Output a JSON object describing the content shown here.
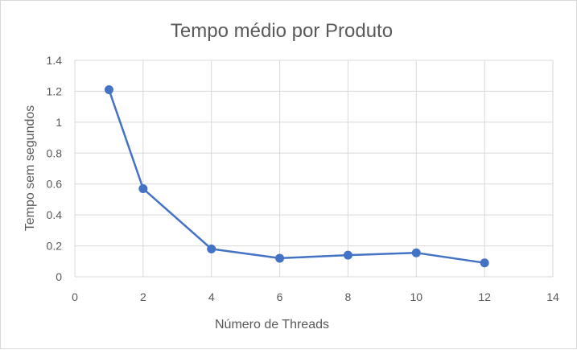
{
  "chart_data": {
    "type": "scatter",
    "title": "Tempo médio por Produto",
    "xlabel": "Número de Threads",
    "ylabel": "Tempo sem segundos",
    "xlim": [
      0,
      14
    ],
    "ylim": [
      0,
      1.4
    ],
    "x_ticks": [
      "0",
      "2",
      "4",
      "6",
      "8",
      "10",
      "12",
      "14"
    ],
    "y_ticks": [
      "0",
      "0.2",
      "0.4",
      "0.6",
      "0.8",
      "1",
      "1.2",
      "1.4"
    ],
    "grid": true,
    "legend": "none",
    "series": [
      {
        "x": [
          1,
          2,
          4,
          6,
          8,
          10,
          12
        ],
        "y": [
          1.21,
          0.57,
          0.18,
          0.12,
          0.14,
          0.155,
          0.09
        ],
        "color": "#4472c4",
        "style": "line-with-markers"
      }
    ]
  }
}
